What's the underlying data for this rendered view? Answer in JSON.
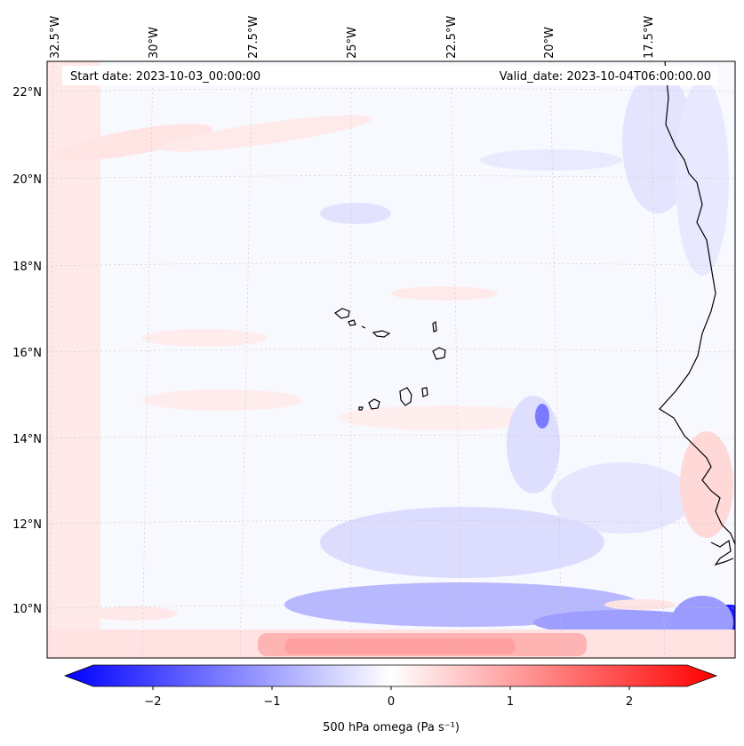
{
  "map": {
    "start_label": "Start date: 2023-10-03_00:00:00",
    "valid_label": "Valid_date: 2023-10-04T06:00:00.00",
    "lon_labels": [
      "32.5°W",
      "30°W",
      "27.5°W",
      "25°W",
      "22.5°W",
      "20°W",
      "17.5°W"
    ],
    "lat_labels": [
      "22°N",
      "20°N",
      "18°N",
      "16°N",
      "14°N",
      "12°N",
      "10°N"
    ],
    "colorbar": {
      "label": "500 hPa omega (Pa s⁻¹)",
      "ticks": [
        "−2",
        "−1",
        "0",
        "1",
        "2"
      ],
      "range": [
        -2.5,
        2.5
      ],
      "cmap": "bwr",
      "colors": {
        "negative": "#0000ff",
        "zero": "#ffffff",
        "positive": "#ff0000"
      }
    },
    "features": [
      "cape-verde-islands",
      "west-africa-coastline"
    ]
  }
}
